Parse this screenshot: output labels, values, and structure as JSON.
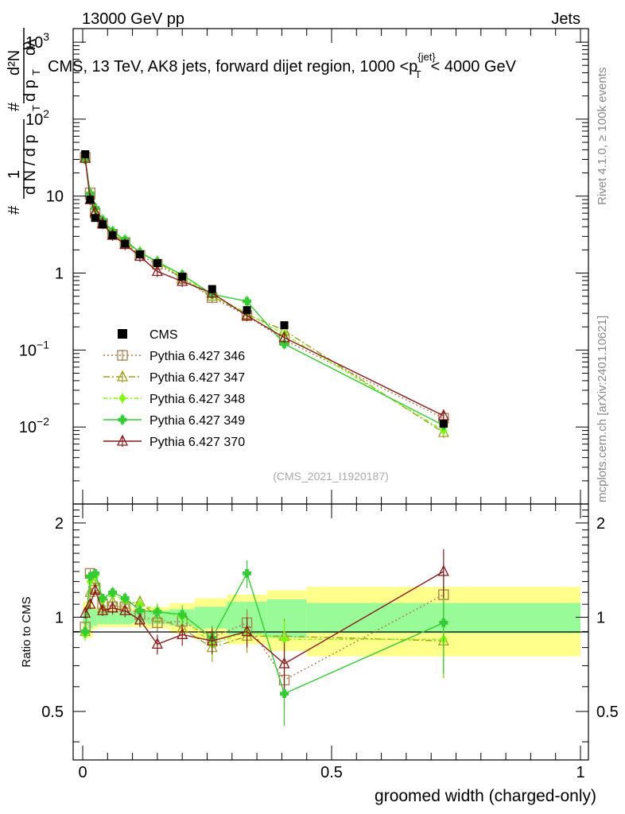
{
  "header": {
    "left": "13000 GeV pp",
    "right": "Jets"
  },
  "side": {
    "rivet": "Rivet 4.1.0, ≥ 100k events",
    "mcplots": "mcplots.cern.ch [arXiv:2401.10621]"
  },
  "chart_data": {
    "type": "line",
    "title": "CMS, 13 TeV, AK8 jets, forward dijet region, 1000 <p_T^{jet}< 4000 GeV",
    "title_parts": {
      "before": "CMS, 13 TeV, AK8 jets, forward dijet region, 1000 <p",
      "sup": "{jet}",
      "sub": "T",
      "after": "< 4000 GeV"
    },
    "ylabel": "1/dN/dp_T  d²N/dp_T dλ",
    "ylabel_parts": {
      "one": "1",
      "hash": "#",
      "d2n": "d²N",
      "dndpt": "d N / d p",
      "dpt": "d p",
      "dl": "dλ",
      "t": "T"
    },
    "xlabel": "groomed width (charged-only)",
    "ratio_ylabel": "Ratio to CMS",
    "watermark": "(CMS_2021_I1920187)",
    "xlim": [
      0,
      1
    ],
    "ylim": [
      0.001,
      1500
    ],
    "ratio_ylim": [
      0.35,
      2.3
    ],
    "yscale": "log",
    "x_ticks": [
      {
        "v": 0,
        "label": "0"
      },
      {
        "v": 0.5,
        "label": "0.5"
      },
      {
        "v": 1,
        "label": "1"
      }
    ],
    "y_ticks": [
      {
        "v": 1000,
        "base": "10",
        "exp": "3"
      },
      {
        "v": 100,
        "base": "10",
        "exp": "2"
      },
      {
        "v": 10,
        "base": "10",
        "exp": ""
      },
      {
        "v": 1,
        "base": "1",
        "exp": ""
      },
      {
        "v": 0.1,
        "base": "10",
        "exp": "−1"
      },
      {
        "v": 0.01,
        "base": "10",
        "exp": "−2"
      }
    ],
    "ratio_ticks": [
      {
        "v": 0.5,
        "label": "0.5"
      },
      {
        "v": 1,
        "label": "1"
      },
      {
        "v": 2,
        "label": "2"
      }
    ],
    "x": [
      0.005,
      0.015,
      0.025,
      0.04,
      0.06,
      0.085,
      0.115,
      0.15,
      0.2,
      0.26,
      0.33,
      0.405,
      0.725
    ],
    "bin_edges": [
      0,
      0.01,
      0.02,
      0.03,
      0.05,
      0.07,
      0.1,
      0.13,
      0.175,
      0.225,
      0.29,
      0.37,
      0.45,
      1.0
    ],
    "data": {
      "name": "CMS",
      "color": "#000000",
      "values": [
        35,
        9.0,
        5.2,
        4.3,
        3.1,
        2.4,
        1.75,
        1.35,
        0.9,
        0.62,
        0.33,
        0.21,
        0.011
      ],
      "band_inner": [
        0.05,
        0.08,
        0.06,
        0.05,
        0.05,
        0.05,
        0.04,
        0.05,
        0.06,
        0.08,
        0.12,
        0.14,
        0.11
      ],
      "band_outer": [
        0.12,
        0.14,
        0.08,
        0.07,
        0.07,
        0.07,
        0.07,
        0.08,
        0.11,
        0.15,
        0.18,
        0.22,
        0.25
      ]
    },
    "series": [
      {
        "name": "Pythia 6.427 346",
        "color": "#a77d4f",
        "style": "dotted",
        "marker": "square",
        "values": [
          32,
          11.0,
          6.0,
          4.4,
          3.2,
          2.5,
          1.7,
          1.3,
          0.85,
          0.48,
          0.28,
          0.135,
          0.013
        ],
        "ratio": [
          0.93,
          1.38,
          1.24,
          1.1,
          1.08,
          1.08,
          1.02,
          0.96,
          0.97,
          0.86,
          0.96,
          0.63,
          1.18
        ],
        "ratio_err": [
          0.04,
          0.04,
          0.04,
          0.04,
          0.05,
          0.05,
          0.05,
          0.06,
          0.07,
          0.08,
          0.1,
          0.12,
          0.3
        ]
      },
      {
        "name": "Pythia 6.427 347",
        "color": "#a0a020",
        "style": "dashdot",
        "marker": "triangle",
        "values": [
          31,
          10.2,
          6.4,
          4.6,
          3.3,
          2.55,
          1.85,
          1.4,
          0.85,
          0.5,
          0.29,
          0.18,
          0.0085
        ],
        "ratio": [
          0.9,
          1.2,
          1.3,
          1.07,
          1.12,
          1.1,
          1.12,
          1.0,
          0.92,
          0.8,
          0.87,
          0.87,
          0.84
        ],
        "ratio_err": [
          0.04,
          0.04,
          0.04,
          0.04,
          0.05,
          0.05,
          0.05,
          0.06,
          0.07,
          0.08,
          0.1,
          0.12,
          0.2
        ]
      },
      {
        "name": "Pythia 6.427 348",
        "color": "#7cfc00",
        "style": "dashdot2",
        "marker": "diamond",
        "values": [
          30,
          10.5,
          6.7,
          4.7,
          3.4,
          2.6,
          1.9,
          1.4,
          0.9,
          0.52,
          0.3,
          0.16,
          0.009
        ],
        "ratio": [
          0.88,
          1.3,
          1.35,
          1.13,
          1.18,
          1.13,
          1.1,
          1.05,
          1.0,
          0.82,
          0.9,
          0.85,
          0.85
        ],
        "ratio_err": [
          0.04,
          0.04,
          0.04,
          0.04,
          0.05,
          0.05,
          0.05,
          0.06,
          0.07,
          0.08,
          0.1,
          0.12,
          0.2
        ]
      },
      {
        "name": "Pythia 6.427 349",
        "color": "#32cd32",
        "style": "solid",
        "marker": "cross",
        "values": [
          30,
          10.8,
          7.0,
          4.9,
          3.5,
          2.7,
          1.85,
          1.4,
          0.95,
          0.53,
          0.43,
          0.12,
          0.0105
        ],
        "ratio": [
          0.9,
          1.35,
          1.38,
          1.15,
          1.2,
          1.15,
          1.05,
          1.04,
          1.02,
          0.86,
          1.38,
          0.57,
          0.96
        ],
        "ratio_err": [
          0.04,
          0.04,
          0.04,
          0.04,
          0.05,
          0.05,
          0.05,
          0.06,
          0.07,
          0.08,
          0.14,
          0.12,
          0.3
        ]
      },
      {
        "name": "Pythia 6.427 370",
        "color": "#8b1a1a",
        "style": "solid",
        "marker": "triangle",
        "values": [
          31,
          9.0,
          6.2,
          4.4,
          3.1,
          2.35,
          1.65,
          1.05,
          0.78,
          0.55,
          0.28,
          0.145,
          0.014
        ],
        "ratio": [
          1.03,
          1.1,
          1.22,
          1.05,
          1.07,
          1.05,
          0.98,
          0.82,
          0.88,
          0.84,
          0.9,
          0.71,
          1.4
        ],
        "ratio_err": [
          0.04,
          0.04,
          0.04,
          0.04,
          0.05,
          0.05,
          0.05,
          0.06,
          0.07,
          0.08,
          0.1,
          0.12,
          0.25
        ]
      }
    ]
  }
}
